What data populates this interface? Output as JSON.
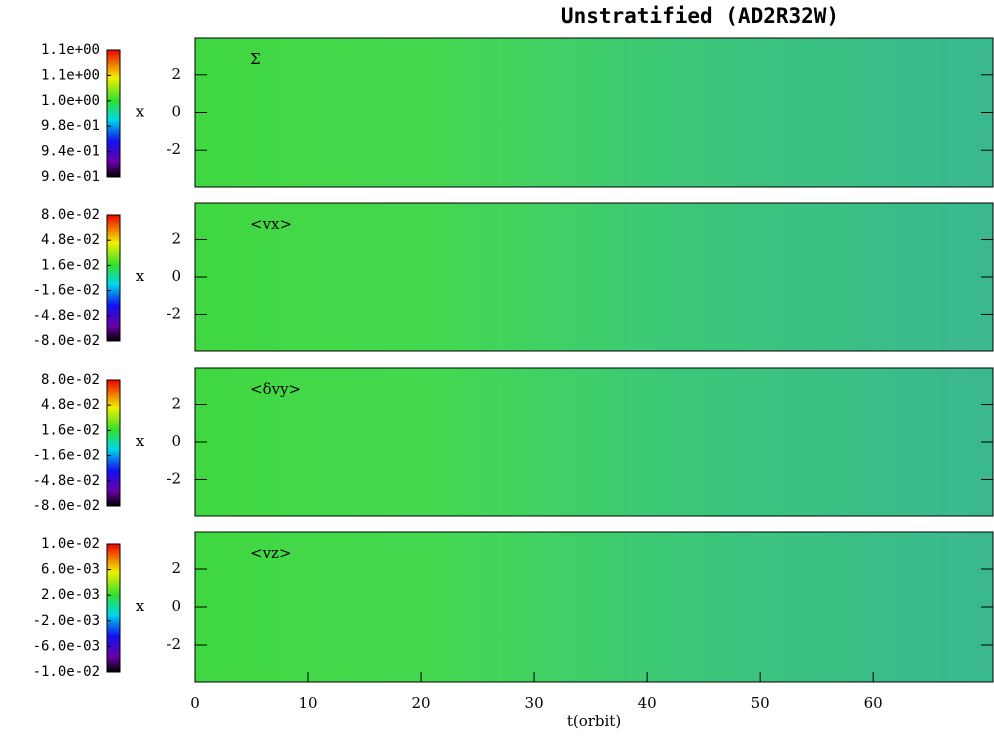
{
  "chart_data": [
    {
      "type": "heatmap",
      "title": "Unstratified (AD2R32W)",
      "label": "Σ",
      "ylabel": "x",
      "ylim": [
        -3.95,
        3.95
      ],
      "yticks": [
        -2,
        0,
        2
      ],
      "xlim": [
        0,
        70.6
      ],
      "clim": [
        0.9,
        1.1
      ],
      "cticks": [
        {
          "value": 1.1,
          "label": "1.1e+00"
        },
        {
          "value": 1.06,
          "label": "1.1e+00"
        },
        {
          "value": 1.02,
          "label": "1.0e+00"
        },
        {
          "value": 0.98,
          "label": "9.8e-01"
        },
        {
          "value": 0.94,
          "label": "9.4e-01"
        },
        {
          "value": 0.9,
          "label": "9.0e-01"
        }
      ]
    },
    {
      "type": "heatmap",
      "label": "<vx>",
      "ylabel": "x",
      "ylim": [
        -3.95,
        3.95
      ],
      "yticks": [
        -2,
        0,
        2
      ],
      "xlim": [
        0,
        70.6
      ],
      "clim": [
        -0.08,
        0.08
      ],
      "cticks": [
        {
          "value": 0.08,
          "label": "8.0e-02"
        },
        {
          "value": 0.048,
          "label": "4.8e-02"
        },
        {
          "value": 0.016,
          "label": "1.6e-02"
        },
        {
          "value": -0.016,
          "label": "-1.6e-02"
        },
        {
          "value": -0.048,
          "label": "-4.8e-02"
        },
        {
          "value": -0.08,
          "label": "-8.0e-02"
        }
      ]
    },
    {
      "type": "heatmap",
      "label": "<δvy>",
      "ylabel": "x",
      "ylim": [
        -3.95,
        3.95
      ],
      "yticks": [
        -2,
        0,
        2
      ],
      "xlim": [
        0,
        70.6
      ],
      "clim": [
        -0.08,
        0.08
      ],
      "cticks": [
        {
          "value": 0.08,
          "label": "8.0e-02"
        },
        {
          "value": 0.048,
          "label": "4.8e-02"
        },
        {
          "value": 0.016,
          "label": "1.6e-02"
        },
        {
          "value": -0.016,
          "label": "-1.6e-02"
        },
        {
          "value": -0.048,
          "label": "-4.8e-02"
        },
        {
          "value": -0.08,
          "label": "-8.0e-02"
        }
      ]
    },
    {
      "type": "heatmap",
      "label": "<vz>",
      "ylabel": "x",
      "xlabel": "t(orbit)",
      "ylim": [
        -3.95,
        3.95
      ],
      "yticks": [
        -2,
        0,
        2
      ],
      "xlim": [
        0,
        70.6
      ],
      "xticks": [
        0,
        10,
        20,
        30,
        40,
        50,
        60
      ],
      "clim": [
        -0.01,
        0.01
      ],
      "cticks": [
        {
          "value": 0.01,
          "label": "1.0e-02"
        },
        {
          "value": 0.006,
          "label": "6.0e-03"
        },
        {
          "value": 0.002,
          "label": "2.0e-03"
        },
        {
          "value": -0.002,
          "label": "-2.0e-03"
        },
        {
          "value": -0.006,
          "label": "-6.0e-03"
        },
        {
          "value": -0.01,
          "label": "-1.0e-02"
        }
      ]
    }
  ]
}
